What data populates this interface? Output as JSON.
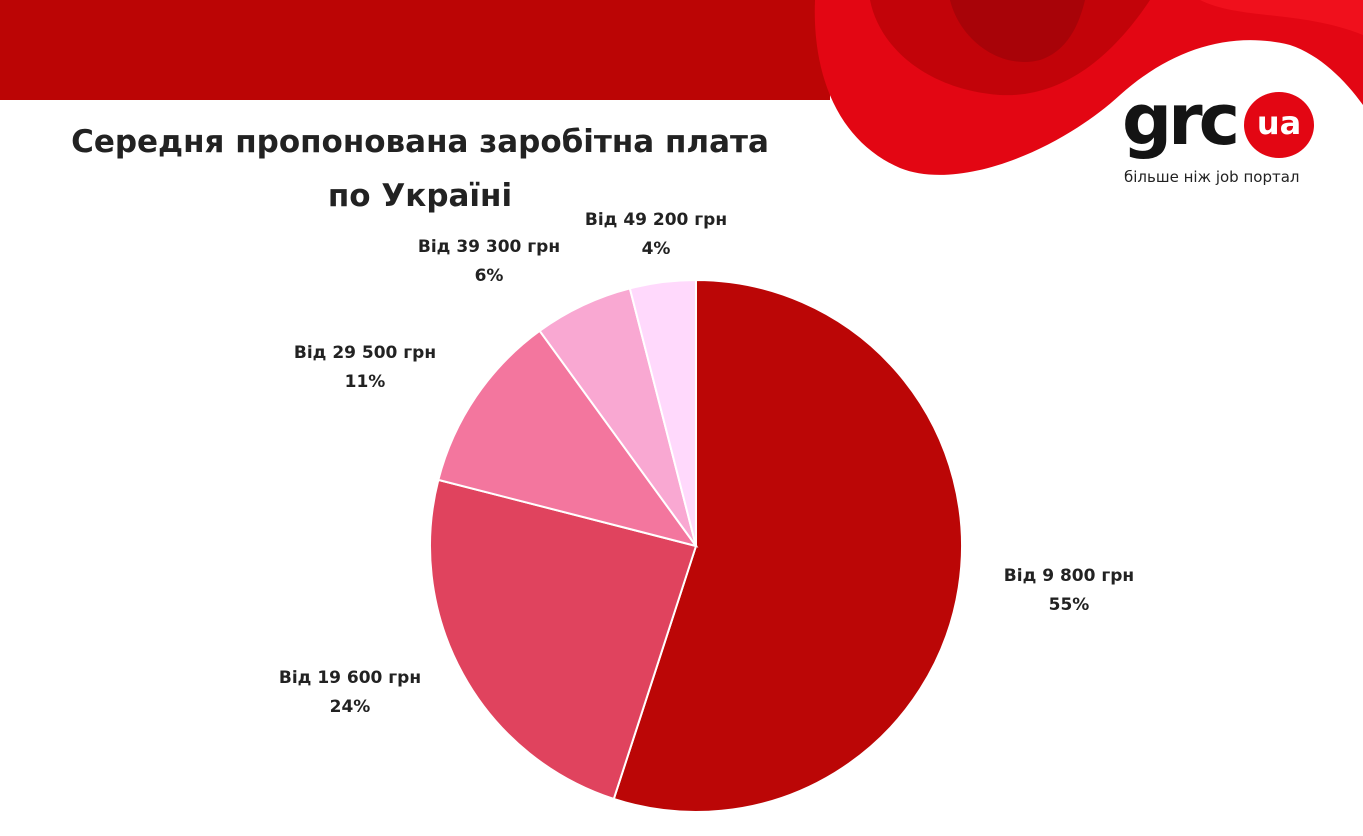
{
  "chart_data": {
    "type": "pie",
    "title": "Середня пропонована заробітна плата по Україні",
    "title_lines": [
      "Середня пропонована заробітна плата",
      "по Україні"
    ],
    "slices": [
      {
        "label": "Від 9 800 грн",
        "value": 55,
        "value_label": "55%",
        "color": "#bb0606"
      },
      {
        "label": "Від 19 600 грн",
        "value": 24,
        "value_label": "24%",
        "color": "#e0435e"
      },
      {
        "label": "Від 29 500 грн",
        "value": 11,
        "value_label": "11%",
        "color": "#f3769e"
      },
      {
        "label": "Від 39 300 грн",
        "value": 6,
        "value_label": "6%",
        "color": "#f9a8d2"
      },
      {
        "label": "Від 49 200 грн",
        "value": 4,
        "value_label": "4%",
        "color": "#ffd9fc"
      }
    ],
    "start_angle": "12 o'clock",
    "direction": "clockwise",
    "legend": "none"
  },
  "logo": {
    "word": "grc",
    "badge": "ua",
    "tagline": "більше ніж job портал",
    "colors": {
      "word": "#141414",
      "badge": "#e30613"
    }
  },
  "theme": {
    "header_red": "#bb0505",
    "accent_red": "#e30613"
  }
}
